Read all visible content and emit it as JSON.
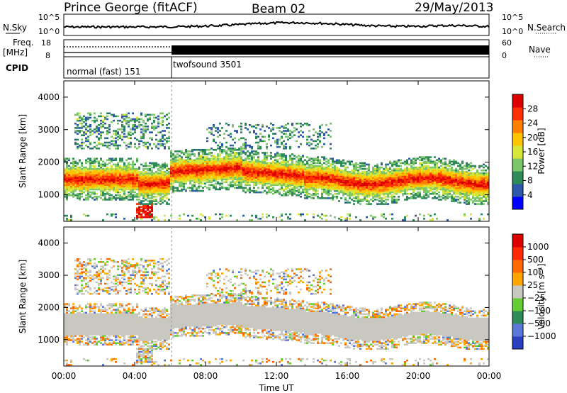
{
  "header": {
    "station": "Prince George (fitACF)",
    "beam": "Beam 02",
    "date": "29/May/2013"
  },
  "strips": {
    "nsky_label": "N.Sky",
    "nsky_ticks": [
      "10^5",
      "10^0"
    ],
    "nsearch_label": "N.Search",
    "nsearch_ticks": [
      "10^5",
      "10^0"
    ],
    "freq_label_1": "Freq.",
    "freq_label_2": "[MHz]",
    "freq_ticks": [
      "18",
      "8"
    ],
    "nave_label": "Nave",
    "nave_ticks": [
      "60",
      "0"
    ],
    "cpid_label": "CPID",
    "cpid_segments": [
      {
        "label": "normal (fast) 151",
        "start_hour": 0,
        "end_hour": 6
      },
      {
        "label": "twofsound 3501",
        "start_hour": 6,
        "end_hour": 24
      }
    ]
  },
  "chart_data": [
    {
      "type": "heatmap",
      "panel": "power",
      "xlabel": "Time UT",
      "ylabel": "Slant Range [km]",
      "xlim": [
        0,
        24
      ],
      "ylim": [
        180,
        4500
      ],
      "x_ticks": [
        "00:00",
        "04:00",
        "08:00",
        "12:00",
        "16:00",
        "20:00",
        "00:00"
      ],
      "y_ticks": [
        1000,
        2000,
        3000,
        4000
      ],
      "colorbar": {
        "label": "Power [dB]",
        "ticks": [
          "28",
          "24",
          "20",
          "16",
          "12",
          "8",
          "4"
        ],
        "range": [
          0,
          30
        ],
        "colors": [
          "#0000ff",
          "#2e59a8",
          "#2e8b57",
          "#7cc66a",
          "#d7e63a",
          "#ffc400",
          "#ff8000",
          "#ff3000",
          "#dd0000"
        ]
      },
      "features": [
        {
          "name": "main echo band",
          "time_hours": [
            0,
            24
          ],
          "range_km": [
            1200,
            2200
          ],
          "power_db": [
            12,
            28
          ]
        },
        {
          "name": "near-range patch",
          "time_hours": [
            4.0,
            5.0
          ],
          "range_km": [
            300,
            700
          ],
          "power_db": [
            24,
            30
          ]
        },
        {
          "name": "upper weak echoes",
          "time_hours": [
            0.5,
            6.0
          ],
          "range_km": [
            2400,
            3500
          ],
          "power_db": [
            4,
            14
          ]
        }
      ]
    },
    {
      "type": "heatmap",
      "panel": "velocity",
      "xlabel": "Time UT",
      "ylabel": "Slant Range [km]",
      "xlim": [
        0,
        24
      ],
      "ylim": [
        180,
        4500
      ],
      "x_ticks": [
        "00:00",
        "04:00",
        "08:00",
        "12:00",
        "16:00",
        "20:00",
        "00:00"
      ],
      "y_ticks": [
        1000,
        2000,
        3000,
        4000
      ],
      "colorbar": {
        "label": "Velocity [m s⁻¹]",
        "ticks": [
          "1000",
          "500",
          "100",
          "25",
          "−25",
          "−100",
          "−500",
          "−1000"
        ],
        "colors": [
          "#2a3ec0",
          "#5a78d8",
          "#2e8b57",
          "#66cc33",
          "#c8c8c0",
          "#ffa500",
          "#ff6a00",
          "#ff2a00",
          "#dd0000"
        ]
      },
      "features": [
        {
          "name": "ground scatter (near zero velocity)",
          "time_hours": [
            0,
            24
          ],
          "range_km": [
            1100,
            2100
          ],
          "velocity": [
            -25,
            25
          ]
        },
        {
          "name": "ionospheric scatter",
          "time_hours": [
            0.5,
            6.0
          ],
          "range_km": [
            2400,
            3500
          ],
          "velocity": [
            -500,
            500
          ]
        }
      ]
    }
  ]
}
